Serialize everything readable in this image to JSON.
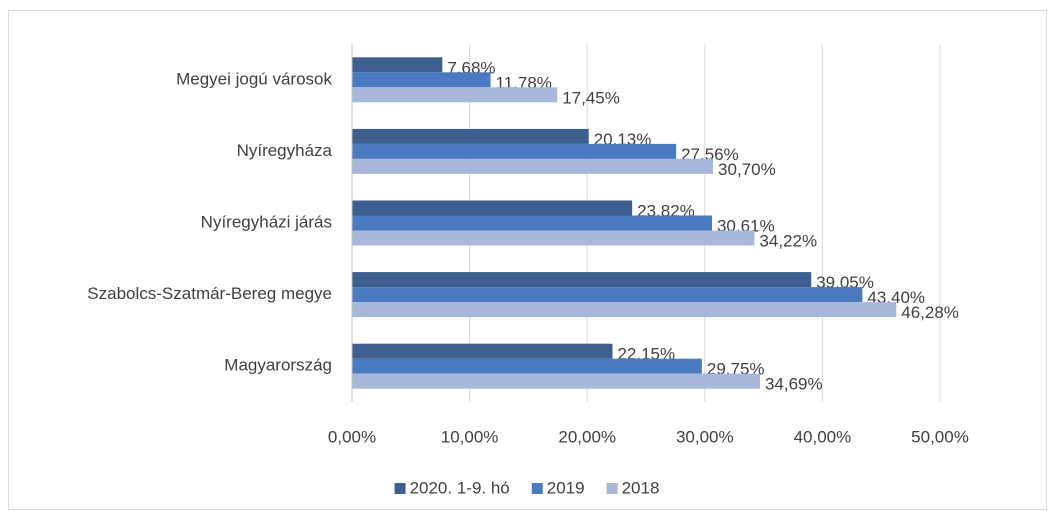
{
  "chart_data": {
    "type": "hbar",
    "categories": [
      "Megyei jogú városok",
      "Nyíregyháza",
      "Nyíregyházi járás",
      "Szabolcs-Szatmár-Bereg megye",
      "Magyarország"
    ],
    "series": [
      {
        "name": "2020. 1-9. hó",
        "color": "#3e5f8f",
        "values": [
          7.68,
          20.13,
          23.82,
          39.05,
          22.15
        ],
        "value_labels": [
          "7,68%",
          "20,13%",
          "23,82%",
          "39,05%",
          "22,15%"
        ]
      },
      {
        "name": "2019",
        "color": "#4a7bc1",
        "values": [
          11.78,
          27.56,
          30.61,
          43.4,
          29.75
        ],
        "value_labels": [
          "11,78%",
          "27,56%",
          "30,61%",
          "43,40%",
          "29,75%"
        ]
      },
      {
        "name": "2018",
        "color": "#a8b8db",
        "values": [
          17.45,
          30.7,
          34.22,
          46.28,
          34.69
        ],
        "value_labels": [
          "17,45%",
          "30,70%",
          "34,22%",
          "46,28%",
          "34,69%"
        ]
      }
    ],
    "xlim": [
      0,
      50
    ],
    "xticks": [
      {
        "value": 0,
        "label": "0,00%"
      },
      {
        "value": 10,
        "label": "10,00%"
      },
      {
        "value": 20,
        "label": "20,00%"
      },
      {
        "value": 30,
        "label": "30,00%"
      },
      {
        "value": 40,
        "label": "40,00%"
      },
      {
        "value": 50,
        "label": "50,00%"
      }
    ],
    "grid": true,
    "legend": "bottom"
  }
}
